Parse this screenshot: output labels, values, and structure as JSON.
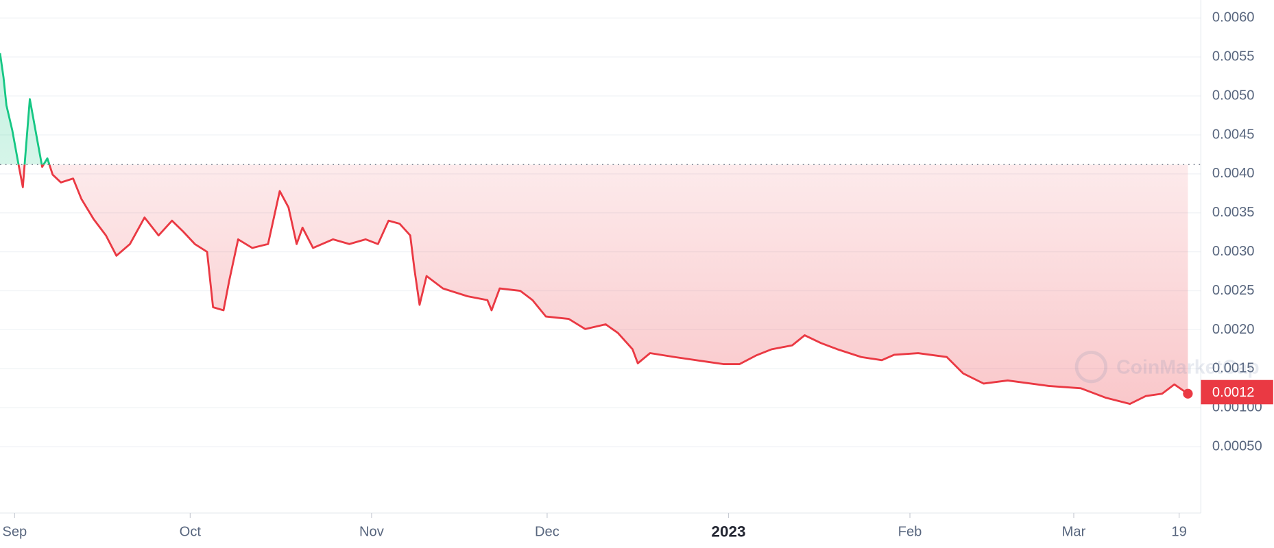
{
  "chart_data": {
    "type": "line",
    "x": [
      -2.5,
      -1.9,
      -1.4,
      -0.4,
      0.6,
      1.4,
      2.6,
      3.8,
      4.7,
      5.6,
      6.5,
      7.9,
      10,
      11.4,
      13.5,
      15.6,
      17.4,
      19.7,
      22.2,
      24.6,
      26.9,
      28.8,
      30.8,
      32.9,
      33.9,
      35.7,
      36.7,
      38.2,
      40.6,
      43.3,
      45.3,
      46.8,
      48.2,
      49.2,
      51,
      54.4,
      57.2,
      60,
      62.1,
      63.9,
      65.8,
      67.6,
      68.3,
      69.2,
      70.4,
      73.2,
      77.4,
      80.8,
      81.5,
      82.9,
      86.4,
      88.5,
      90.8,
      94.7,
      97.5,
      101,
      103.1,
      105.6,
      106.5,
      108.6,
      112.8,
      118.3,
      121.1,
      123.9,
      126.7,
      129.4,
      132.9,
      135,
      137.8,
      140.6,
      144.7,
      148.2,
      150.3,
      154.4,
      159.3,
      162.1,
      165.6,
      169.7,
      176.7,
      182.2,
      186.4,
      190.6,
      193.3,
      196.1,
      198.2,
      200.5
    ],
    "series": [
      {
        "color": "#ea3943",
        "color_above": "#16c784",
        "values": [
          0.00555,
          0.00524,
          0.00488,
          0.00456,
          0.00415,
          0.00383,
          0.00496,
          0.00446,
          0.00409,
          0.0042,
          0.00399,
          0.00389,
          0.00394,
          0.00368,
          0.00342,
          0.00321,
          0.00295,
          0.0031,
          0.00344,
          0.00321,
          0.0034,
          0.00326,
          0.0031,
          0.003,
          0.00229,
          0.00225,
          0.00264,
          0.00316,
          0.00305,
          0.0031,
          0.00378,
          0.00357,
          0.0031,
          0.00331,
          0.00305,
          0.00316,
          0.0031,
          0.00316,
          0.0031,
          0.0034,
          0.00336,
          0.00321,
          0.00279,
          0.00232,
          0.00269,
          0.00253,
          0.00243,
          0.00238,
          0.00225,
          0.00253,
          0.0025,
          0.00238,
          0.00217,
          0.00214,
          0.00201,
          0.00207,
          0.00196,
          0.00175,
          0.00157,
          0.0017,
          0.00165,
          0.00159,
          0.00156,
          0.00156,
          0.00167,
          0.00175,
          0.0018,
          0.00193,
          0.00183,
          0.00175,
          0.00165,
          0.00161,
          0.00168,
          0.0017,
          0.00165,
          0.00144,
          0.00131,
          0.00135,
          0.00128,
          0.00125,
          0.00113,
          0.00105,
          0.00115,
          0.00118,
          0.0013,
          0.00118
        ]
      }
    ],
    "baseline": 0.00412,
    "price_tag": {
      "value": 0.0012,
      "label": "0.0012"
    },
    "watermark": "CoinMarketCap",
    "xlim": [
      -2.5,
      200.5
    ],
    "xticks": [
      {
        "value": 0,
        "label": "Sep"
      },
      {
        "value": 30,
        "label": "Oct"
      },
      {
        "value": 61,
        "label": "Nov"
      },
      {
        "value": 91,
        "label": "Dec"
      },
      {
        "value": 122,
        "label": "2023"
      },
      {
        "value": 153,
        "label": "Feb"
      },
      {
        "value": 181,
        "label": "Mar"
      },
      {
        "value": 199,
        "label": "19"
      }
    ],
    "ylim": [
      -0.00033,
      0.00623
    ],
    "yticks": [
      {
        "value": 0.006,
        "label": "0.0060"
      },
      {
        "value": 0.0055,
        "label": "0.0055"
      },
      {
        "value": 0.005,
        "label": "0.0050"
      },
      {
        "value": 0.0045,
        "label": "0.0045"
      },
      {
        "value": 0.004,
        "label": "0.0040"
      },
      {
        "value": 0.0035,
        "label": "0.0035"
      },
      {
        "value": 0.003,
        "label": "0.0030"
      },
      {
        "value": 0.0025,
        "label": "0.0025"
      },
      {
        "value": 0.002,
        "label": "0.0020"
      },
      {
        "value": 0.0015,
        "label": "0.0015"
      },
      {
        "value": 0.001,
        "label": "0.00100"
      },
      {
        "value": 0.0005,
        "label": "0.00050"
      }
    ],
    "y_axis_side": "right",
    "grid": true
  }
}
